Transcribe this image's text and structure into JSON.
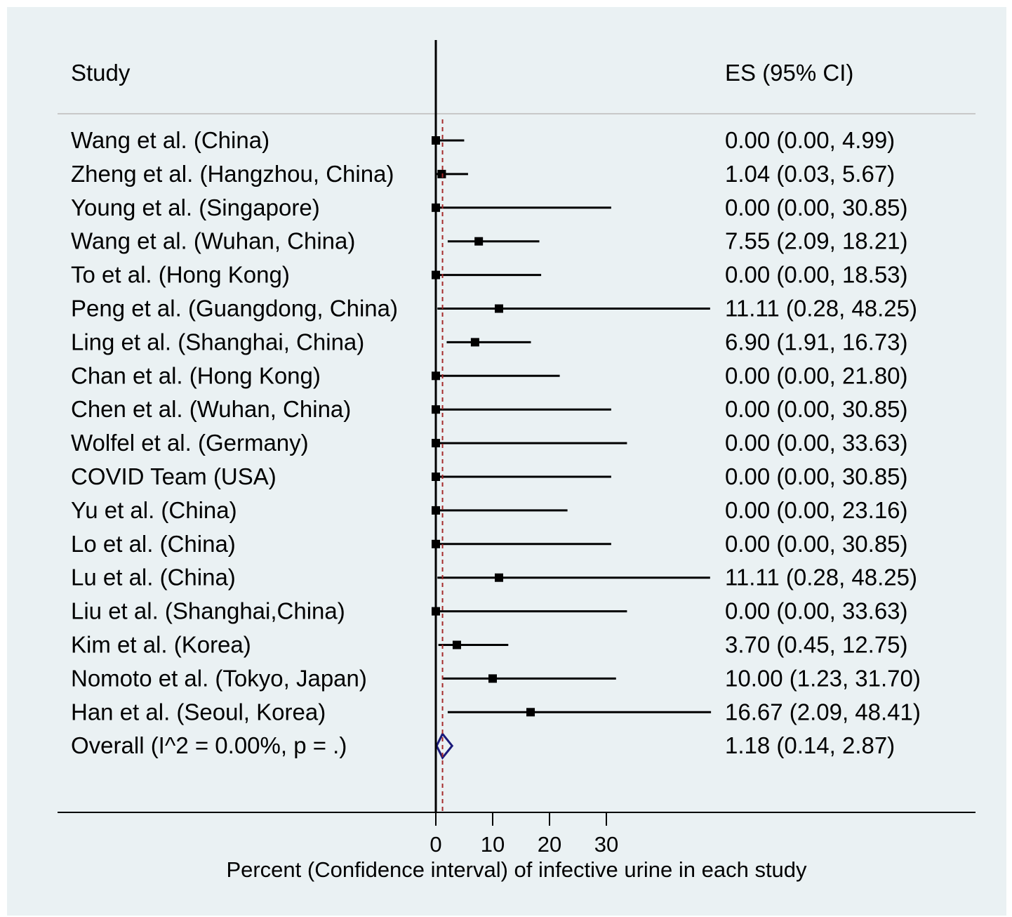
{
  "colors": {
    "background": "#eaf1f3",
    "page": "#ffffff",
    "marker": "#000000",
    "ci_line": "#000000",
    "null_line": "#000000",
    "overall_line": "#a52a2a",
    "diamond": "#1a1a7a",
    "separator": "#c8c8c8"
  },
  "headers": {
    "study": "Study",
    "es": "ES (95% CI)"
  },
  "chart_data": {
    "type": "forest",
    "xlabel": "Percent (Confidence interval) of infective urine in each study",
    "x_ticks": [
      0,
      10,
      20,
      30
    ],
    "null_value": 0,
    "studies": [
      {
        "label": "Wang et al. (China)",
        "es": 0.0,
        "lo": 0.0,
        "hi": 4.99,
        "text": "0.00 (0.00, 4.99)"
      },
      {
        "label": "Zheng et al. (Hangzhou, China)",
        "es": 1.04,
        "lo": 0.03,
        "hi": 5.67,
        "text": "1.04 (0.03, 5.67)"
      },
      {
        "label": "Young et al. (Singapore)",
        "es": 0.0,
        "lo": 0.0,
        "hi": 30.85,
        "text": "0.00 (0.00, 30.85)"
      },
      {
        "label": "Wang et al. (Wuhan, China)",
        "es": 7.55,
        "lo": 2.09,
        "hi": 18.21,
        "text": "7.55 (2.09, 18.21)"
      },
      {
        "label": "To et al. (Hong Kong)",
        "es": 0.0,
        "lo": 0.0,
        "hi": 18.53,
        "text": "0.00 (0.00, 18.53)"
      },
      {
        "label": "Peng et al. (Guangdong, China)",
        "es": 11.11,
        "lo": 0.28,
        "hi": 48.25,
        "text": "11.11 (0.28, 48.25)"
      },
      {
        "label": "Ling et al. (Shanghai, China)",
        "es": 6.9,
        "lo": 1.91,
        "hi": 16.73,
        "text": "6.90 (1.91, 16.73)"
      },
      {
        "label": "Chan et al. (Hong Kong)",
        "es": 0.0,
        "lo": 0.0,
        "hi": 21.8,
        "text": "0.00 (0.00, 21.80)"
      },
      {
        "label": "Chen et al. (Wuhan, China)",
        "es": 0.0,
        "lo": 0.0,
        "hi": 30.85,
        "text": "0.00 (0.00, 30.85)"
      },
      {
        "label": "Wolfel et al. (Germany)",
        "es": 0.0,
        "lo": 0.0,
        "hi": 33.63,
        "text": "0.00 (0.00, 33.63)"
      },
      {
        "label": "COVID Team (USA)",
        "es": 0.0,
        "lo": 0.0,
        "hi": 30.85,
        "text": "0.00 (0.00, 30.85)"
      },
      {
        "label": "Yu et al. (China)",
        "es": 0.0,
        "lo": 0.0,
        "hi": 23.16,
        "text": "0.00 (0.00, 23.16)"
      },
      {
        "label": "Lo et al. (China)",
        "es": 0.0,
        "lo": 0.0,
        "hi": 30.85,
        "text": "0.00 (0.00, 30.85)"
      },
      {
        "label": "Lu et al. (China)",
        "es": 11.11,
        "lo": 0.28,
        "hi": 48.25,
        "text": "11.11 (0.28, 48.25)"
      },
      {
        "label": "Liu et al. (Shanghai,China)",
        "es": 0.0,
        "lo": 0.0,
        "hi": 33.63,
        "text": "0.00 (0.00, 33.63)"
      },
      {
        "label": "Kim et al. (Korea)",
        "es": 3.7,
        "lo": 0.45,
        "hi": 12.75,
        "text": "3.70 (0.45, 12.75)"
      },
      {
        "label": "Nomoto et al. (Tokyo, Japan)",
        "es": 10.0,
        "lo": 1.23,
        "hi": 31.7,
        "text": "10.00 (1.23, 31.70)"
      },
      {
        "label": "Han et al. (Seoul, Korea)",
        "es": 16.67,
        "lo": 2.09,
        "hi": 48.41,
        "text": "16.67 (2.09, 48.41)"
      }
    ],
    "overall": {
      "label": "Overall  (I^2 = 0.00%, p = .)",
      "es": 1.18,
      "lo": 0.14,
      "hi": 2.87,
      "text": "1.18 (0.14, 2.87)"
    }
  }
}
